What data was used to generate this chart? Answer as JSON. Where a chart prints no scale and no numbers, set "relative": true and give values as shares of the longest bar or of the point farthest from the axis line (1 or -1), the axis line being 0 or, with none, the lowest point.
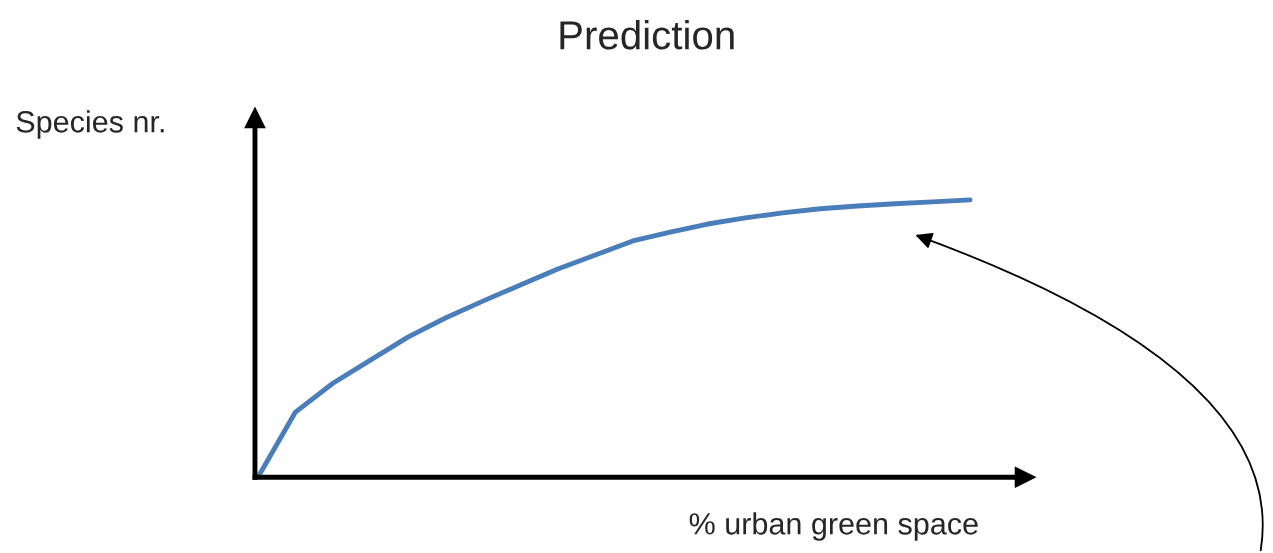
{
  "chart_data": {
    "type": "line",
    "title": "Prediction",
    "xlabel": "% urban green space",
    "ylabel": "Species nr.",
    "relative": true,
    "categories": [
      null,
      null,
      null,
      null,
      null,
      null,
      null,
      null,
      null,
      null,
      null,
      null,
      null,
      null,
      null,
      null,
      null,
      null,
      null,
      null
    ],
    "series": [
      {
        "color": "#4a7ebb",
        "values": [
          0,
          0.235,
          0.339,
          0.422,
          0.505,
          0.574,
          0.635,
          0.693,
          0.751,
          0.801,
          0.852,
          0.884,
          0.913,
          0.935,
          0.953,
          0.968,
          0.978,
          0.986,
          0.993,
          1.0
        ]
      }
    ]
  }
}
